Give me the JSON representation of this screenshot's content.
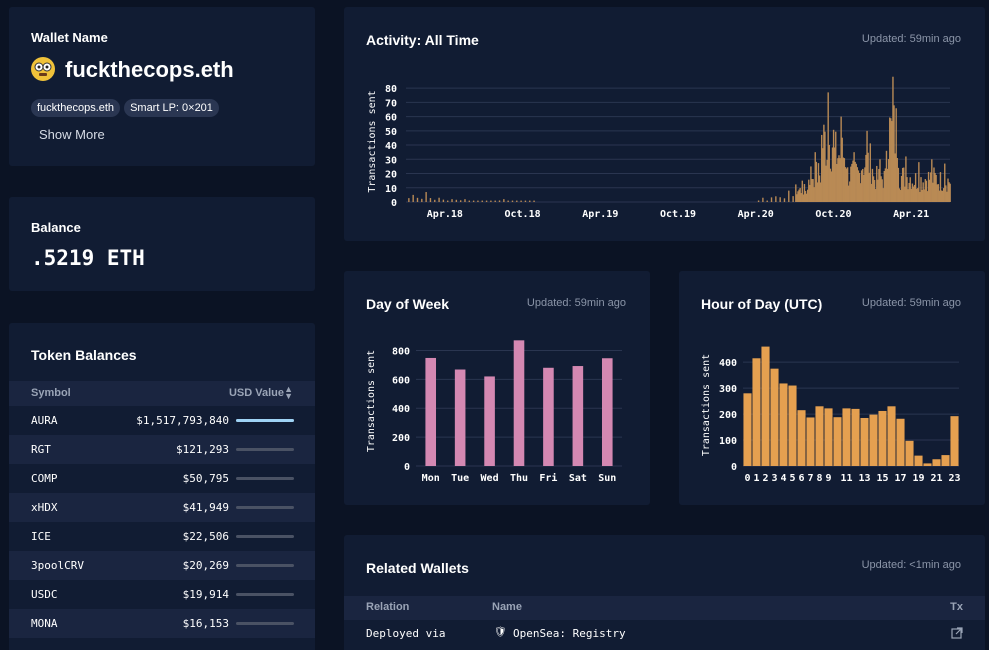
{
  "wallet": {
    "label": "Wallet Name",
    "name": "fuckthecops.eth",
    "tags": [
      "fuckthecops.eth",
      "Smart LP: 0×201"
    ],
    "show_more": "Show More"
  },
  "balance": {
    "label": "Balance",
    "value": ".5219 ETH"
  },
  "tokens": {
    "title": "Token Balances",
    "col_symbol": "Symbol",
    "col_value": "USD Value",
    "rows": [
      {
        "symbol": "AURA",
        "value": "$1,517,793,840",
        "share": 1.0
      },
      {
        "symbol": "RGT",
        "value": "$121,293",
        "share": 0.0
      },
      {
        "symbol": "COMP",
        "value": "$50,795",
        "share": 0.0
      },
      {
        "symbol": "xHDX",
        "value": "$41,949",
        "share": 0.0
      },
      {
        "symbol": "ICE",
        "value": "$22,506",
        "share": 0.0
      },
      {
        "symbol": "3poolCRV",
        "value": "$20,269",
        "share": 0.0
      },
      {
        "symbol": "USDC",
        "value": "$19,914",
        "share": 0.0
      },
      {
        "symbol": "MONA",
        "value": "$16,153",
        "share": 0.0
      }
    ]
  },
  "activity": {
    "title": "Activity: All Time",
    "updated": "Updated: 59min ago"
  },
  "dow": {
    "title": "Day of Week",
    "updated": "Updated: 59min ago"
  },
  "hod": {
    "title": "Hour of Day (UTC)",
    "updated": "Updated: 59min ago"
  },
  "related": {
    "title": "Related Wallets",
    "updated": "Updated: <1min ago",
    "col_relation": "Relation",
    "col_name": "Name",
    "col_tx": "Tx",
    "rows": [
      {
        "relation": "Deployed via",
        "name": "OpenSea: Registry"
      }
    ]
  },
  "colors": {
    "activity": "#b98a55",
    "dow": "#d488b2",
    "hod": "#e5a050",
    "accent_bar": "#9fd3f5"
  },
  "chart_data": [
    {
      "type": "bar",
      "title": "Activity: All Time",
      "ylabel": "Transactions sent",
      "ylim": [
        0,
        85
      ],
      "yticks": [
        0,
        10,
        20,
        30,
        40,
        50,
        60,
        70,
        80
      ],
      "x_tick_labels": [
        "Apr.18",
        "Oct.18",
        "Apr.19",
        "Oct.19",
        "Apr.20",
        "Oct.20",
        "Apr.21"
      ],
      "x_range": [
        "2018-01",
        "2021-07"
      ],
      "series": [
        {
          "values_by_month": [
            {
              "month": "2018-01",
              "peak": 5
            },
            {
              "month": "2018-02",
              "peak": 7
            },
            {
              "month": "2018-03",
              "peak": 3
            },
            {
              "month": "2018-04",
              "peak": 2
            },
            {
              "month": "2018-05",
              "peak": 2
            },
            {
              "month": "2018-06",
              "peak": 1
            },
            {
              "month": "2018-07",
              "peak": 1
            },
            {
              "month": "2018-08",
              "peak": 2
            },
            {
              "month": "2018-09",
              "peak": 1
            },
            {
              "month": "2018-10",
              "peak": 1
            },
            {
              "month": "2020-04",
              "peak": 3
            },
            {
              "month": "2020-05",
              "peak": 4
            },
            {
              "month": "2020-06",
              "peak": 8
            },
            {
              "month": "2020-07",
              "peak": 15
            },
            {
              "month": "2020-08",
              "peak": 35
            },
            {
              "month": "2020-09",
              "peak": 77
            },
            {
              "month": "2020-10",
              "peak": 60
            },
            {
              "month": "2020-11",
              "peak": 35
            },
            {
              "month": "2020-12",
              "peak": 50
            },
            {
              "month": "2021-01",
              "peak": 30
            },
            {
              "month": "2021-02",
              "peak": 88
            },
            {
              "month": "2021-03",
              "peak": 32
            },
            {
              "month": "2021-04",
              "peak": 28
            },
            {
              "month": "2021-05",
              "peak": 30
            },
            {
              "month": "2021-06",
              "peak": 27
            }
          ]
        }
      ]
    },
    {
      "type": "bar",
      "title": "Day of Week",
      "ylabel": "Transactions sent",
      "ylim": [
        0,
        900
      ],
      "yticks": [
        0,
        200,
        400,
        600,
        800
      ],
      "categories": [
        "Mon",
        "Tue",
        "Wed",
        "Thu",
        "Fri",
        "Sat",
        "Sun"
      ],
      "values": [
        748,
        668,
        620,
        870,
        680,
        692,
        746
      ]
    },
    {
      "type": "bar",
      "title": "Hour of Day (UTC)",
      "ylabel": "Transactions sent",
      "ylim": [
        0,
        470
      ],
      "yticks": [
        0,
        100,
        200,
        300,
        400
      ],
      "categories": [
        "0",
        "1",
        "2",
        "3",
        "4",
        "5",
        "6",
        "7",
        "8",
        "9",
        "10",
        "11",
        "12",
        "13",
        "14",
        "15",
        "16",
        "17",
        "18",
        "19",
        "20",
        "21",
        "22",
        "23"
      ],
      "tick_labels": [
        "0",
        "1",
        "2",
        "3",
        "4",
        "5",
        "6",
        "7",
        "8",
        "9",
        "11",
        "13",
        "15",
        "17",
        "19",
        "21",
        "23"
      ],
      "values": [
        280,
        415,
        460,
        375,
        318,
        310,
        215,
        187,
        230,
        222,
        188,
        222,
        220,
        185,
        198,
        212,
        230,
        182,
        97,
        40,
        10,
        26,
        42,
        192
      ]
    }
  ]
}
